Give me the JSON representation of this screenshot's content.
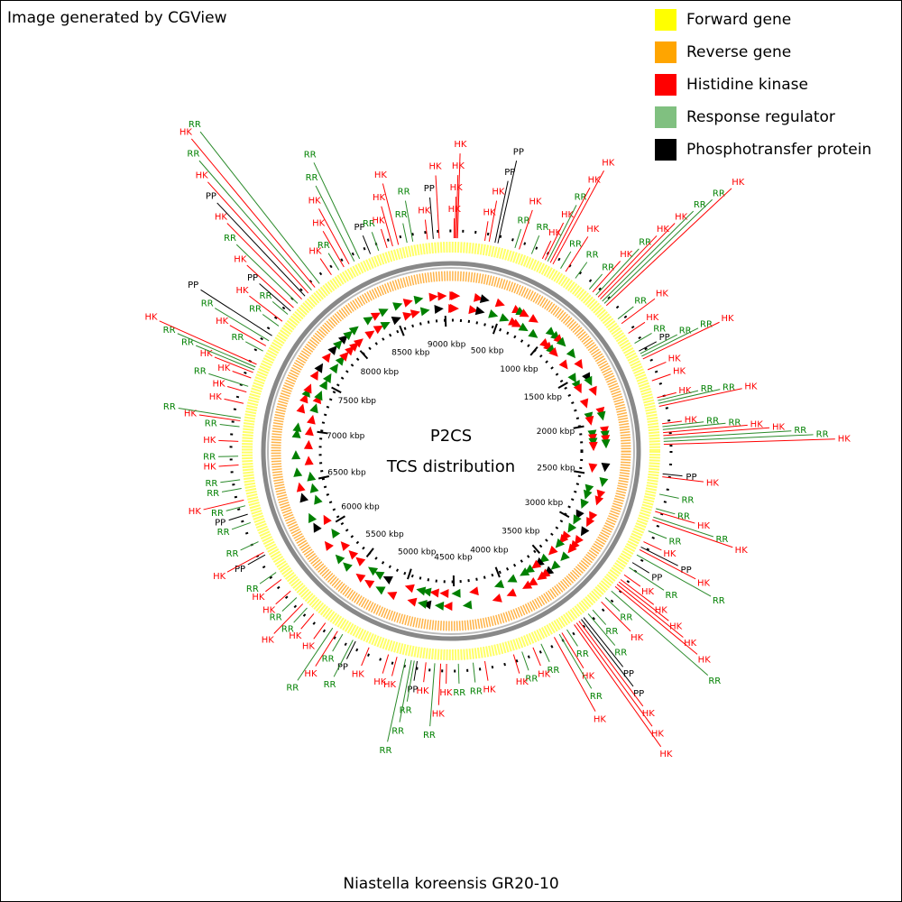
{
  "header": {
    "credit": "Image generated by CGView"
  },
  "legend": [
    {
      "label": "Forward gene",
      "color": "#ffff00"
    },
    {
      "label": "Reverse gene",
      "color": "#ffa500"
    },
    {
      "label": "Histidine kinase",
      "color": "#ff0000"
    },
    {
      "label": "Response regulator",
      "color": "#80c080"
    },
    {
      "label": "Phosphotransfer protein",
      "color": "#000000"
    }
  ],
  "map": {
    "title": "P2CS",
    "subtitle": "TCS distribution",
    "genome_length_kbp": 9060,
    "ticks": [
      {
        "value": 500,
        "label": "500 kbp"
      },
      {
        "value": 1000,
        "label": "1000 kbp"
      },
      {
        "value": 1500,
        "label": "1500 kbp"
      },
      {
        "value": 2000,
        "label": "2000 kbp"
      },
      {
        "value": 2500,
        "label": "2500 kbp"
      },
      {
        "value": 3000,
        "label": "3000 kbp"
      },
      {
        "value": 3500,
        "label": "3500 kbp"
      },
      {
        "value": 4000,
        "label": "4000 kbp"
      },
      {
        "value": 4500,
        "label": "4500 kbp"
      },
      {
        "value": 5000,
        "label": "5000 kbp"
      },
      {
        "value": 5500,
        "label": "5500 kbp"
      },
      {
        "value": 6000,
        "label": "6000 kbp"
      },
      {
        "value": 6500,
        "label": "6500 kbp"
      },
      {
        "value": 7000,
        "label": "7000 kbp"
      },
      {
        "value": 7500,
        "label": "7500 kbp"
      },
      {
        "value": 8000,
        "label": "8000 kbp"
      },
      {
        "value": 8500,
        "label": "8500 kbp"
      },
      {
        "value": 9000,
        "label": "9000 kbp"
      }
    ],
    "features": [
      {
        "label": "HK",
        "position": 20,
        "kind": 2
      },
      {
        "label": "HK",
        "position": 28,
        "kind": 2
      },
      {
        "label": "HK",
        "position": 36,
        "kind": 2
      },
      {
        "label": "HK",
        "position": 44,
        "kind": 2
      },
      {
        "label": "HK",
        "position": 230,
        "kind": 2
      },
      {
        "label": "HK",
        "position": 260,
        "kind": 2
      },
      {
        "label": "PP",
        "position": 300,
        "kind": 4
      },
      {
        "label": "PP",
        "position": 320,
        "kind": 4
      },
      {
        "label": "RR",
        "position": 440,
        "kind": 3
      },
      {
        "label": "HK",
        "position": 470,
        "kind": 2
      },
      {
        "label": "RR",
        "position": 560,
        "kind": 3
      },
      {
        "label": "HK",
        "position": 640,
        "kind": 2
      },
      {
        "label": "HK",
        "position": 660,
        "kind": 2
      },
      {
        "label": "RR",
        "position": 680,
        "kind": 3
      },
      {
        "label": "HK",
        "position": 700,
        "kind": 2
      },
      {
        "label": "HK",
        "position": 720,
        "kind": 2
      },
      {
        "label": "RR",
        "position": 780,
        "kind": 3
      },
      {
        "label": "HK",
        "position": 820,
        "kind": 2
      },
      {
        "label": "RR",
        "position": 900,
        "kind": 3
      },
      {
        "label": "RR",
        "position": 1020,
        "kind": 3
      },
      {
        "label": "HK",
        "position": 1050,
        "kind": 2
      },
      {
        "label": "RR",
        "position": 1080,
        "kind": 3
      },
      {
        "label": "HK",
        "position": 1100,
        "kind": 2
      },
      {
        "label": "HK",
        "position": 1120,
        "kind": 2
      },
      {
        "label": "RR",
        "position": 1140,
        "kind": 3
      },
      {
        "label": "RR",
        "position": 1160,
        "kind": 3
      },
      {
        "label": "HK",
        "position": 1180,
        "kind": 2
      },
      {
        "label": "RR",
        "position": 1300,
        "kind": 3
      },
      {
        "label": "HK",
        "position": 1340,
        "kind": 2
      },
      {
        "label": "HK",
        "position": 1420,
        "kind": 2
      },
      {
        "label": "RR",
        "position": 1500,
        "kind": 3
      },
      {
        "label": "PP",
        "position": 1560,
        "kind": 4
      },
      {
        "label": "RR",
        "position": 1580,
        "kind": 3
      },
      {
        "label": "RR",
        "position": 1600,
        "kind": 3
      },
      {
        "label": "HK",
        "position": 1620,
        "kind": 2
      },
      {
        "label": "HK",
        "position": 1700,
        "kind": 2
      },
      {
        "label": "HK",
        "position": 1780,
        "kind": 2
      },
      {
        "label": "HK",
        "position": 1900,
        "kind": 2
      },
      {
        "label": "RR",
        "position": 1920,
        "kind": 3
      },
      {
        "label": "RR",
        "position": 1940,
        "kind": 3
      },
      {
        "label": "HK",
        "position": 1960,
        "kind": 2
      },
      {
        "label": "HK",
        "position": 2080,
        "kind": 2
      },
      {
        "label": "RR",
        "position": 2100,
        "kind": 3
      },
      {
        "label": "RR",
        "position": 2120,
        "kind": 3
      },
      {
        "label": "HK",
        "position": 2140,
        "kind": 2
      },
      {
        "label": "HK",
        "position": 2160,
        "kind": 2
      },
      {
        "label": "RR",
        "position": 2180,
        "kind": 3
      },
      {
        "label": "RR",
        "position": 2200,
        "kind": 3
      },
      {
        "label": "HK",
        "position": 2220,
        "kind": 2
      },
      {
        "label": "PP",
        "position": 2420,
        "kind": 4
      },
      {
        "label": "HK",
        "position": 2440,
        "kind": 2
      },
      {
        "label": "RR",
        "position": 2560,
        "kind": 3
      },
      {
        "label": "RR",
        "position": 2660,
        "kind": 3
      },
      {
        "label": "HK",
        "position": 2680,
        "kind": 2
      },
      {
        "label": "RR",
        "position": 2720,
        "kind": 3
      },
      {
        "label": "HK",
        "position": 2740,
        "kind": 2
      },
      {
        "label": "RR",
        "position": 2820,
        "kind": 3
      },
      {
        "label": "HK",
        "position": 2900,
        "kind": 2
      },
      {
        "label": "PP",
        "position": 2940,
        "kind": 4
      },
      {
        "label": "HK",
        "position": 2960,
        "kind": 2
      },
      {
        "label": "RR",
        "position": 3000,
        "kind": 3
      },
      {
        "label": "PP",
        "position": 3060,
        "kind": 4
      },
      {
        "label": "RR",
        "position": 3100,
        "kind": 3
      },
      {
        "label": "HK",
        "position": 3160,
        "kind": 2
      },
      {
        "label": "HK",
        "position": 3200,
        "kind": 2
      },
      {
        "label": "HK",
        "position": 3220,
        "kind": 2
      },
      {
        "label": "HK",
        "position": 3240,
        "kind": 2
      },
      {
        "label": "HK",
        "position": 3260,
        "kind": 2
      },
      {
        "label": "RR",
        "position": 3300,
        "kind": 3
      },
      {
        "label": "RR",
        "position": 3360,
        "kind": 3
      },
      {
        "label": "HK",
        "position": 3400,
        "kind": 2
      },
      {
        "label": "RR",
        "position": 3480,
        "kind": 3
      },
      {
        "label": "RR",
        "position": 3520,
        "kind": 3
      },
      {
        "label": "PP",
        "position": 3560,
        "kind": 4
      },
      {
        "label": "PP",
        "position": 3580,
        "kind": 4
      },
      {
        "label": "HK",
        "position": 3600,
        "kind": 2
      },
      {
        "label": "HK",
        "position": 3620,
        "kind": 2
      },
      {
        "label": "HK",
        "position": 3640,
        "kind": 2
      },
      {
        "label": "RR",
        "position": 3700,
        "kind": 3
      },
      {
        "label": "HK",
        "position": 3740,
        "kind": 2
      },
      {
        "label": "RR",
        "position": 3760,
        "kind": 3
      },
      {
        "label": "HK",
        "position": 3800,
        "kind": 2
      },
      {
        "label": "RR",
        "position": 3900,
        "kind": 3
      },
      {
        "label": "HK",
        "position": 3960,
        "kind": 2
      },
      {
        "label": "RR",
        "position": 4040,
        "kind": 3
      },
      {
        "label": "HK",
        "position": 4100,
        "kind": 2
      },
      {
        "label": "HK",
        "position": 4300,
        "kind": 2
      },
      {
        "label": "RR",
        "position": 4380,
        "kind": 3
      },
      {
        "label": "RR",
        "position": 4480,
        "kind": 3
      },
      {
        "label": "HK",
        "position": 4560,
        "kind": 2
      },
      {
        "label": "HK",
        "position": 4600,
        "kind": 2
      },
      {
        "label": "RR",
        "position": 4640,
        "kind": 3
      },
      {
        "label": "HK",
        "position": 4700,
        "kind": 2
      },
      {
        "label": "PP",
        "position": 4760,
        "kind": 4
      },
      {
        "label": "RR",
        "position": 4780,
        "kind": 3
      },
      {
        "label": "RR",
        "position": 4800,
        "kind": 3
      },
      {
        "label": "RR",
        "position": 4840,
        "kind": 3
      },
      {
        "label": "HK",
        "position": 4900,
        "kind": 2
      },
      {
        "label": "HK",
        "position": 4960,
        "kind": 2
      },
      {
        "label": "HK",
        "position": 5100,
        "kind": 2
      },
      {
        "label": "PP",
        "position": 5200,
        "kind": 4
      },
      {
        "label": "RR",
        "position": 5220,
        "kind": 3
      },
      {
        "label": "RR",
        "position": 5300,
        "kind": 3
      },
      {
        "label": "HK",
        "position": 5340,
        "kind": 2
      },
      {
        "label": "RR",
        "position": 5380,
        "kind": 3
      },
      {
        "label": "HK",
        "position": 5440,
        "kind": 2
      },
      {
        "label": "HK",
        "position": 5540,
        "kind": 2
      },
      {
        "label": "RR",
        "position": 5600,
        "kind": 3
      },
      {
        "label": "HK",
        "position": 5640,
        "kind": 2
      },
      {
        "label": "RR",
        "position": 5700,
        "kind": 3
      },
      {
        "label": "HK",
        "position": 5760,
        "kind": 2
      },
      {
        "label": "HK",
        "position": 5860,
        "kind": 2
      },
      {
        "label": "RR",
        "position": 5920,
        "kind": 3
      },
      {
        "label": "PP",
        "position": 6060,
        "kind": 4
      },
      {
        "label": "HK",
        "position": 6080,
        "kind": 2
      },
      {
        "label": "RR",
        "position": 6160,
        "kind": 3
      },
      {
        "label": "RR",
        "position": 6300,
        "kind": 3
      },
      {
        "label": "PP",
        "position": 6360,
        "kind": 4
      },
      {
        "label": "RR",
        "position": 6420,
        "kind": 3
      },
      {
        "label": "HK",
        "position": 6460,
        "kind": 2
      },
      {
        "label": "RR",
        "position": 6540,
        "kind": 3
      },
      {
        "label": "RR",
        "position": 6600,
        "kind": 3
      },
      {
        "label": "HK",
        "position": 6700,
        "kind": 2
      },
      {
        "label": "RR",
        "position": 6760,
        "kind": 3
      },
      {
        "label": "HK",
        "position": 6860,
        "kind": 2
      },
      {
        "label": "RR",
        "position": 6960,
        "kind": 3
      },
      {
        "label": "HK",
        "position": 7000,
        "kind": 2
      },
      {
        "label": "RR",
        "position": 7020,
        "kind": 3
      },
      {
        "label": "HK",
        "position": 7120,
        "kind": 2
      },
      {
        "label": "HK",
        "position": 7200,
        "kind": 2
      },
      {
        "label": "RR",
        "position": 7240,
        "kind": 3
      },
      {
        "label": "HK",
        "position": 7300,
        "kind": 2
      },
      {
        "label": "HK",
        "position": 7340,
        "kind": 2
      },
      {
        "label": "RR",
        "position": 7360,
        "kind": 3
      },
      {
        "label": "RR",
        "position": 7380,
        "kind": 3
      },
      {
        "label": "HK",
        "position": 7400,
        "kind": 2
      },
      {
        "label": "RR",
        "position": 7500,
        "kind": 3
      },
      {
        "label": "HK",
        "position": 7540,
        "kind": 2
      },
      {
        "label": "RR",
        "position": 7580,
        "kind": 3
      },
      {
        "label": "PP",
        "position": 7620,
        "kind": 4
      },
      {
        "label": "RR",
        "position": 7700,
        "kind": 3
      },
      {
        "label": "HK",
        "position": 7740,
        "kind": 2
      },
      {
        "label": "RR",
        "position": 7800,
        "kind": 3
      },
      {
        "label": "PP",
        "position": 7830,
        "kind": 4
      },
      {
        "label": "HK",
        "position": 7860,
        "kind": 2
      },
      {
        "label": "RR",
        "position": 7900,
        "kind": 3
      },
      {
        "label": "HK",
        "position": 7940,
        "kind": 2
      },
      {
        "label": "PP",
        "position": 7970,
        "kind": 4
      },
      {
        "label": "HK",
        "position": 8000,
        "kind": 2
      },
      {
        "label": "RR",
        "position": 8030,
        "kind": 3
      },
      {
        "label": "HK",
        "position": 8060,
        "kind": 2
      },
      {
        "label": "RR",
        "position": 8100,
        "kind": 3
      },
      {
        "label": "HK",
        "position": 8200,
        "kind": 2
      },
      {
        "label": "RR",
        "position": 8260,
        "kind": 3
      },
      {
        "label": "HK",
        "position": 8300,
        "kind": 2
      },
      {
        "label": "HK",
        "position": 8340,
        "kind": 2
      },
      {
        "label": "RR",
        "position": 8380,
        "kind": 3
      },
      {
        "label": "RR",
        "position": 8420,
        "kind": 3
      },
      {
        "label": "PP",
        "position": 8500,
        "kind": 4
      },
      {
        "label": "RR",
        "position": 8560,
        "kind": 3
      },
      {
        "label": "HK",
        "position": 8620,
        "kind": 2
      },
      {
        "label": "HK",
        "position": 8660,
        "kind": 2
      },
      {
        "label": "HK",
        "position": 8700,
        "kind": 2
      },
      {
        "label": "RR",
        "position": 8760,
        "kind": 3
      },
      {
        "label": "RR",
        "position": 8800,
        "kind": 3
      },
      {
        "label": "HK",
        "position": 8900,
        "kind": 2
      },
      {
        "label": "PP",
        "position": 8940,
        "kind": 4
      },
      {
        "label": "HK",
        "position": 8980,
        "kind": 2
      }
    ]
  },
  "caption": "Niastella koreensis GR20-10"
}
